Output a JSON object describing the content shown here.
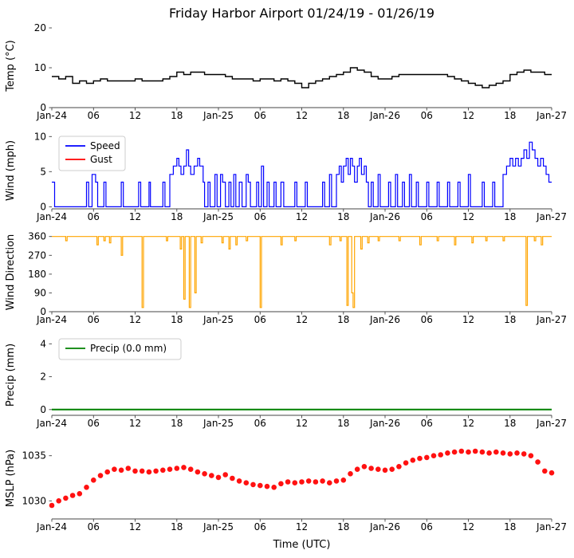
{
  "title": "Friday Harbor Airport 01/24/19 - 01/26/19",
  "x_axis": {
    "label": "Time (UTC)",
    "ticks": [
      0,
      6,
      12,
      18,
      24,
      30,
      36,
      42,
      48,
      54,
      60,
      66,
      72
    ],
    "labels": [
      "Jan-24",
      "06",
      "12",
      "18",
      "Jan-25",
      "06",
      "12",
      "18",
      "Jan-26",
      "06",
      "12",
      "18",
      "Jan-27"
    ]
  },
  "colors": {
    "temp": "#000000",
    "speed": "#0000ff",
    "gust": "#ff0000",
    "direction": "#ffa500",
    "precip": "#008000",
    "mslp": "#ff1111"
  },
  "chart_data": [
    {
      "id": "temp",
      "type": "line",
      "ylabel": "Temp (°C)",
      "ylim": [
        0,
        21
      ],
      "yticks": [
        0,
        10,
        20
      ],
      "series": [
        {
          "name": "Temp",
          "color": "#000000",
          "step": true,
          "width": 1.4,
          "x0": 0,
          "dx": 1,
          "y": [
            7.8,
            7.2,
            7.8,
            6.1,
            6.7,
            6.1,
            6.7,
            7.2,
            6.7,
            6.7,
            6.7,
            6.7,
            7.2,
            6.7,
            6.7,
            6.7,
            7.2,
            7.8,
            8.9,
            8.3,
            8.9,
            8.9,
            8.3,
            8.3,
            8.3,
            7.8,
            7.2,
            7.2,
            7.2,
            6.7,
            7.2,
            7.2,
            6.7,
            7.2,
            6.7,
            6.1,
            5.0,
            6.1,
            6.7,
            7.2,
            7.8,
            8.3,
            8.9,
            10.0,
            9.4,
            8.9,
            7.8,
            7.2,
            7.2,
            7.8,
            8.3,
            8.3,
            8.3,
            8.3,
            8.3,
            8.3,
            8.3,
            7.8,
            7.2,
            6.7,
            6.1,
            5.6,
            5.0,
            5.6,
            6.1,
            6.7,
            8.3,
            8.9,
            9.4,
            8.9,
            8.9,
            8.3,
            8.3
          ]
        }
      ]
    },
    {
      "id": "wind",
      "type": "line",
      "ylabel": "Wind (mph)",
      "ylim": [
        -0.3,
        10.6
      ],
      "yticks": [
        0,
        5,
        10
      ],
      "legend": [
        {
          "label": "Speed",
          "color": "#0000ff"
        },
        {
          "label": "Gust",
          "color": "#ff0000"
        }
      ],
      "series": [
        {
          "name": "Speed",
          "color": "#0000ff",
          "step": true,
          "width": 1.2,
          "points": [
            [
              0,
              3.5
            ],
            [
              0.4,
              0
            ],
            [
              5,
              3.5
            ],
            [
              5.3,
              0
            ],
            [
              5.8,
              4.6
            ],
            [
              6.3,
              3.5
            ],
            [
              6.6,
              0
            ],
            [
              7.5,
              3.5
            ],
            [
              7.8,
              0
            ],
            [
              10,
              3.5
            ],
            [
              10.3,
              0
            ],
            [
              12.5,
              3.5
            ],
            [
              12.8,
              0
            ],
            [
              14,
              3.5
            ],
            [
              14.2,
              0
            ],
            [
              16,
              3.5
            ],
            [
              16.3,
              0
            ],
            [
              17,
              4.6
            ],
            [
              17.5,
              5.8
            ],
            [
              18,
              6.9
            ],
            [
              18.3,
              5.8
            ],
            [
              18.6,
              4.6
            ],
            [
              19,
              5.8
            ],
            [
              19.4,
              8.1
            ],
            [
              19.7,
              5.8
            ],
            [
              20,
              4.6
            ],
            [
              20.5,
              5.8
            ],
            [
              21,
              6.9
            ],
            [
              21.3,
              5.8
            ],
            [
              21.8,
              3.5
            ],
            [
              22,
              0
            ],
            [
              22.5,
              3.5
            ],
            [
              22.8,
              0
            ],
            [
              23.5,
              4.6
            ],
            [
              23.8,
              0
            ],
            [
              24.3,
              4.6
            ],
            [
              24.6,
              3.5
            ],
            [
              25,
              0
            ],
            [
              25.5,
              3.5
            ],
            [
              25.8,
              0
            ],
            [
              26.2,
              4.6
            ],
            [
              26.5,
              0
            ],
            [
              27,
              3.5
            ],
            [
              27.4,
              0
            ],
            [
              28,
              4.6
            ],
            [
              28.3,
              3.5
            ],
            [
              28.6,
              0
            ],
            [
              29.5,
              3.5
            ],
            [
              29.8,
              0
            ],
            [
              30.2,
              5.8
            ],
            [
              30.5,
              0
            ],
            [
              31,
              3.5
            ],
            [
              31.3,
              0
            ],
            [
              32,
              3.5
            ],
            [
              32.3,
              0
            ],
            [
              33,
              3.5
            ],
            [
              33.4,
              0
            ],
            [
              35,
              3.5
            ],
            [
              35.3,
              0
            ],
            [
              36.5,
              3.5
            ],
            [
              36.8,
              0
            ],
            [
              39,
              3.5
            ],
            [
              39.3,
              0
            ],
            [
              40,
              4.6
            ],
            [
              40.3,
              0
            ],
            [
              41,
              4.6
            ],
            [
              41.4,
              5.8
            ],
            [
              41.7,
              3.5
            ],
            [
              42,
              5.8
            ],
            [
              42.4,
              6.9
            ],
            [
              42.7,
              4.6
            ],
            [
              43,
              6.9
            ],
            [
              43.3,
              5.8
            ],
            [
              43.6,
              3.5
            ],
            [
              44,
              5.8
            ],
            [
              44.3,
              6.9
            ],
            [
              44.6,
              4.6
            ],
            [
              45,
              5.8
            ],
            [
              45.3,
              3.5
            ],
            [
              45.6,
              0
            ],
            [
              46,
              3.5
            ],
            [
              46.3,
              0
            ],
            [
              47,
              4.6
            ],
            [
              47.3,
              0
            ],
            [
              48.5,
              3.5
            ],
            [
              48.8,
              0
            ],
            [
              49.5,
              4.6
            ],
            [
              49.8,
              0
            ],
            [
              50.5,
              3.5
            ],
            [
              50.8,
              0
            ],
            [
              51.5,
              4.6
            ],
            [
              51.8,
              0
            ],
            [
              52.5,
              3.5
            ],
            [
              52.8,
              0
            ],
            [
              54,
              3.5
            ],
            [
              54.3,
              0
            ],
            [
              55.5,
              3.5
            ],
            [
              55.8,
              0
            ],
            [
              57,
              3.5
            ],
            [
              57.3,
              0
            ],
            [
              58.5,
              3.5
            ],
            [
              58.8,
              0
            ],
            [
              60,
              4.6
            ],
            [
              60.3,
              0
            ],
            [
              62,
              3.5
            ],
            [
              62.3,
              0
            ],
            [
              63.5,
              3.5
            ],
            [
              63.8,
              0
            ],
            [
              65,
              4.6
            ],
            [
              65.5,
              5.8
            ],
            [
              66,
              6.9
            ],
            [
              66.4,
              5.8
            ],
            [
              66.8,
              6.9
            ],
            [
              67.2,
              5.8
            ],
            [
              67.6,
              6.9
            ],
            [
              68,
              8.1
            ],
            [
              68.4,
              6.9
            ],
            [
              68.8,
              9.2
            ],
            [
              69.2,
              8.1
            ],
            [
              69.6,
              6.9
            ],
            [
              70,
              5.8
            ],
            [
              70.4,
              6.9
            ],
            [
              70.8,
              5.8
            ],
            [
              71.2,
              4.6
            ],
            [
              71.6,
              3.5
            ],
            [
              72,
              3.5
            ]
          ]
        },
        {
          "name": "Gust",
          "color": "#ff0000",
          "step": true,
          "width": 1.2,
          "points": []
        }
      ]
    },
    {
      "id": "winddir",
      "type": "line",
      "ylabel": "Wind Direction",
      "ylim": [
        0,
        378
      ],
      "yticks": [
        0,
        90,
        180,
        270,
        360
      ],
      "series": [
        {
          "name": "Direction",
          "color": "#ffa500",
          "step": true,
          "width": 1.2,
          "points": [
            [
              0,
              360
            ],
            [
              2,
              340
            ],
            [
              2.2,
              360
            ],
            [
              6.5,
              320
            ],
            [
              6.7,
              360
            ],
            [
              7.5,
              340
            ],
            [
              7.7,
              360
            ],
            [
              8.3,
              330
            ],
            [
              8.5,
              360
            ],
            [
              10,
              270
            ],
            [
              10.2,
              360
            ],
            [
              13,
              20
            ],
            [
              13.2,
              360
            ],
            [
              16.5,
              340
            ],
            [
              16.7,
              360
            ],
            [
              18.5,
              300
            ],
            [
              18.7,
              360
            ],
            [
              19,
              60
            ],
            [
              19.2,
              360
            ],
            [
              19.8,
              20
            ],
            [
              20,
              360
            ],
            [
              20.6,
              90
            ],
            [
              20.8,
              360
            ],
            [
              21.5,
              330
            ],
            [
              21.7,
              360
            ],
            [
              24.5,
              330
            ],
            [
              24.7,
              360
            ],
            [
              25.5,
              300
            ],
            [
              25.7,
              360
            ],
            [
              26.5,
              320
            ],
            [
              26.7,
              360
            ],
            [
              28,
              340
            ],
            [
              28.2,
              360
            ],
            [
              30,
              20
            ],
            [
              30.2,
              360
            ],
            [
              33,
              320
            ],
            [
              33.2,
              360
            ],
            [
              35,
              340
            ],
            [
              35.2,
              360
            ],
            [
              40,
              320
            ],
            [
              40.2,
              360
            ],
            [
              41.5,
              340
            ],
            [
              41.7,
              360
            ],
            [
              42.5,
              30
            ],
            [
              42.7,
              360
            ],
            [
              43.2,
              90
            ],
            [
              43.4,
              20
            ],
            [
              43.6,
              360
            ],
            [
              44.5,
              300
            ],
            [
              44.7,
              360
            ],
            [
              45.5,
              330
            ],
            [
              45.7,
              360
            ],
            [
              47,
              340
            ],
            [
              47.2,
              360
            ],
            [
              50,
              340
            ],
            [
              50.2,
              360
            ],
            [
              53,
              320
            ],
            [
              53.2,
              360
            ],
            [
              55.5,
              340
            ],
            [
              55.7,
              360
            ],
            [
              58,
              320
            ],
            [
              58.2,
              360
            ],
            [
              60.5,
              330
            ],
            [
              60.7,
              360
            ],
            [
              62.5,
              340
            ],
            [
              62.7,
              360
            ],
            [
              65,
              340
            ],
            [
              65.2,
              360
            ],
            [
              68.3,
              30
            ],
            [
              68.5,
              360
            ],
            [
              69.5,
              340
            ],
            [
              69.7,
              360
            ],
            [
              70.5,
              320
            ],
            [
              70.7,
              360
            ],
            [
              72,
              360
            ]
          ]
        }
      ]
    },
    {
      "id": "precip",
      "type": "line",
      "ylabel": "Precip (mm)",
      "ylim": [
        -0.35,
        4.55
      ],
      "yticks": [
        0,
        2,
        4
      ],
      "legend": [
        {
          "label": "Precip (0.0 mm)",
          "color": "#008000"
        }
      ],
      "series": [
        {
          "name": "Precip",
          "color": "#008000",
          "step": false,
          "width": 2,
          "points": [
            [
              0,
              0
            ],
            [
              72,
              0
            ]
          ]
        }
      ]
    },
    {
      "id": "mslp",
      "type": "scatter",
      "ylabel": "MSLP (hPa)",
      "ylim": [
        1028,
        1037
      ],
      "yticks": [
        1030,
        1035
      ],
      "series": [
        {
          "name": "MSLP",
          "color": "#ff1111",
          "marker": "circle",
          "x0": 0,
          "dx": 1,
          "y": [
            1029.5,
            1030.0,
            1030.3,
            1030.6,
            1030.8,
            1031.5,
            1032.3,
            1032.8,
            1033.2,
            1033.5,
            1033.4,
            1033.6,
            1033.3,
            1033.3,
            1033.2,
            1033.3,
            1033.4,
            1033.5,
            1033.6,
            1033.7,
            1033.5,
            1033.2,
            1033.0,
            1032.8,
            1032.6,
            1032.9,
            1032.5,
            1032.2,
            1032.0,
            1031.8,
            1031.7,
            1031.6,
            1031.5,
            1031.9,
            1032.1,
            1032.0,
            1032.1,
            1032.2,
            1032.1,
            1032.2,
            1032.0,
            1032.2,
            1032.3,
            1033.0,
            1033.5,
            1033.8,
            1033.6,
            1033.5,
            1033.4,
            1033.5,
            1033.8,
            1034.2,
            1034.5,
            1034.7,
            1034.8,
            1035.0,
            1035.1,
            1035.3,
            1035.4,
            1035.5,
            1035.4,
            1035.5,
            1035.4,
            1035.3,
            1035.4,
            1035.3,
            1035.2,
            1035.3,
            1035.2,
            1035.0,
            1034.3,
            1033.3,
            1033.1
          ]
        }
      ]
    }
  ]
}
